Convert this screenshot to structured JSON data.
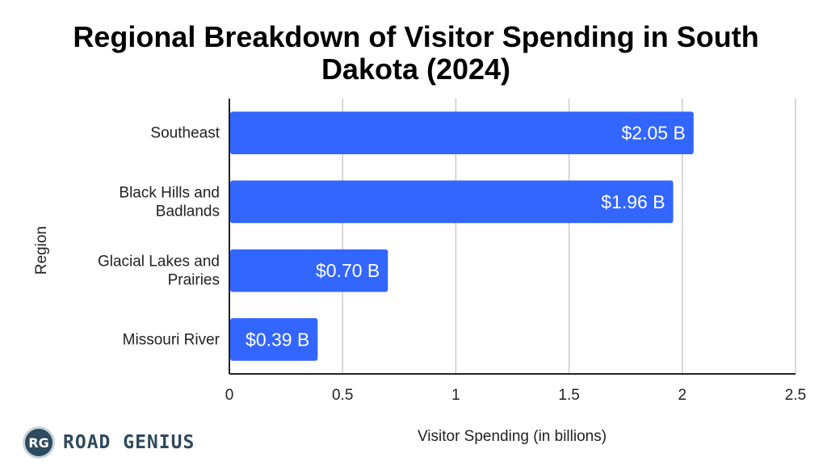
{
  "chart_data": {
    "type": "bar",
    "orientation": "horizontal",
    "title": "Regional Breakdown of Visitor Spending in South Dakota (2024)",
    "xlabel": "Visitor Spending (in billions)",
    "ylabel": "Region",
    "categories": [
      [
        "Southeast"
      ],
      [
        "Black Hills and",
        "Badlands"
      ],
      [
        "Glacial Lakes and",
        "Prairies"
      ],
      [
        "Missouri River"
      ]
    ],
    "values": [
      2.05,
      1.96,
      0.7,
      0.39
    ],
    "data_labels": [
      "$2.05 B",
      "$1.96 B",
      "$0.70 B",
      "$0.39 B"
    ],
    "xlim": [
      0,
      2.5
    ],
    "xticks": [
      0,
      0.5,
      1,
      1.5,
      2,
      2.5
    ],
    "xtick_labels": [
      "0",
      "0.5",
      "1",
      "1.5",
      "2",
      "2.5"
    ],
    "grid": true,
    "bar_color": "#3366ff",
    "grid_color": "#cccccc"
  },
  "logo": {
    "badge": "RG",
    "text": "ROAD GENIUS"
  }
}
